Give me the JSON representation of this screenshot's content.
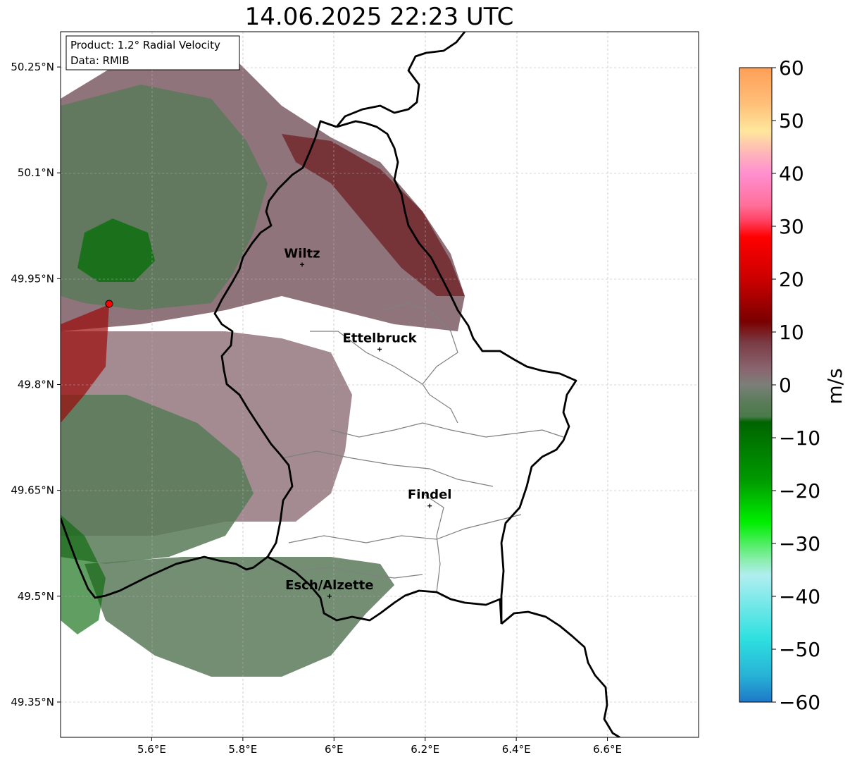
{
  "title": "14.06.2025 22:23 UTC",
  "info_box": {
    "line1": "Product: 1.2° Radial Velocity",
    "line2": "Data: RMIB"
  },
  "map": {
    "x_ticks": [
      {
        "value": 5.6,
        "label": "5.6°E"
      },
      {
        "value": 5.8,
        "label": "5.8°E"
      },
      {
        "value": 6.0,
        "label": "6°E"
      },
      {
        "value": 6.2,
        "label": "6.2°E"
      },
      {
        "value": 6.4,
        "label": "6.4°E"
      },
      {
        "value": 6.6,
        "label": "6.6°E"
      }
    ],
    "y_ticks": [
      {
        "value": 50.25,
        "label": "50.25°N"
      },
      {
        "value": 50.1,
        "label": "50.1°N"
      },
      {
        "value": 49.95,
        "label": "49.95°N"
      },
      {
        "value": 49.8,
        "label": "49.8°N"
      },
      {
        "value": 49.65,
        "label": "49.65°N"
      },
      {
        "value": 49.5,
        "label": "49.5°N"
      },
      {
        "value": 49.35,
        "label": "49.35°N"
      }
    ],
    "x_range": [
      5.4,
      6.8
    ],
    "y_range": [
      49.3,
      50.3
    ],
    "radar_site": {
      "lon": 5.505,
      "lat": 49.915
    },
    "cities": [
      {
        "name": "Wiltz",
        "lon": 5.93,
        "lat": 49.97
      },
      {
        "name": "Ettelbruck",
        "lon": 6.1,
        "lat": 49.85
      },
      {
        "name": "Findel",
        "lon": 6.21,
        "lat": 49.628
      },
      {
        "name": "Esch/Alzette",
        "lon": 5.99,
        "lat": 49.5
      }
    ]
  },
  "colorbar": {
    "label": "m/s",
    "ticks": [
      "60",
      "50",
      "40",
      "30",
      "20",
      "10",
      "0",
      "−10",
      "−20",
      "−30",
      "−40",
      "−50",
      "−60"
    ],
    "range": [
      -60,
      60
    ]
  },
  "colors": {
    "colorbar_stops": [
      {
        "v": 60,
        "c": "#ff9e57"
      },
      {
        "v": 53,
        "c": "#ffc07a"
      },
      {
        "v": 48,
        "c": "#ffe79c"
      },
      {
        "v": 44,
        "c": "#ffb7b7"
      },
      {
        "v": 40,
        "c": "#ff8fd0"
      },
      {
        "v": 34,
        "c": "#ff6f9a"
      },
      {
        "v": 31,
        "c": "#ff4060"
      },
      {
        "v": 28,
        "c": "#ff0000"
      },
      {
        "v": 20,
        "c": "#cc0000"
      },
      {
        "v": 12,
        "c": "#7a0000"
      },
      {
        "v": 8,
        "c": "#7a3b44"
      },
      {
        "v": 3,
        "c": "#8a6570"
      },
      {
        "v": 0,
        "c": "#7c7f78"
      },
      {
        "v": -3,
        "c": "#5c7c5c"
      },
      {
        "v": -6,
        "c": "#4a7a4a"
      },
      {
        "v": -7,
        "c": "#006400"
      },
      {
        "v": -18,
        "c": "#009a00"
      },
      {
        "v": -26,
        "c": "#00ee00"
      },
      {
        "v": -33,
        "c": "#88eeaa"
      },
      {
        "v": -36,
        "c": "#b0eef0"
      },
      {
        "v": -48,
        "c": "#2ee0e0"
      },
      {
        "v": -55,
        "c": "#27b2d6"
      },
      {
        "v": -60,
        "c": "#1f78c8"
      }
    ],
    "radar_site": "#ff0000",
    "border": "#000000"
  }
}
